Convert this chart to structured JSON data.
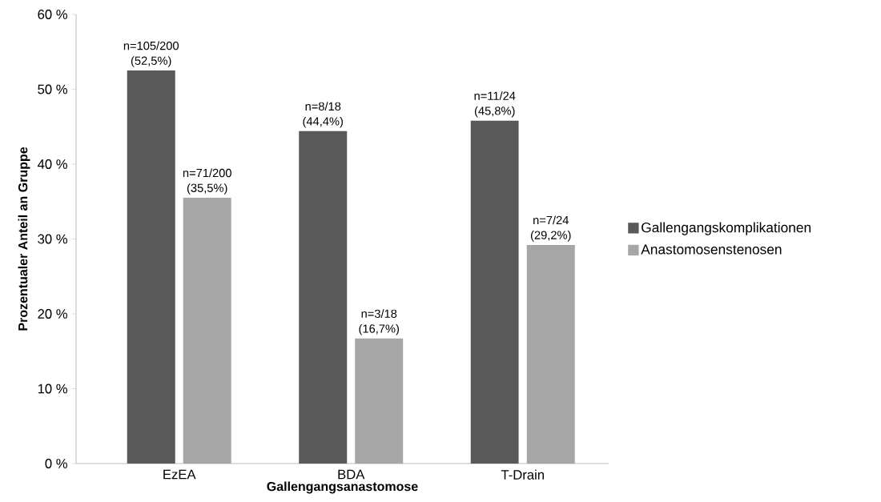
{
  "chart_data": {
    "type": "bar",
    "xlabel": "Gallengangsanastomose",
    "ylabel": "Prozentualer Anteil an Gruppe",
    "categories": [
      "EzEA",
      "BDA",
      "T-Drain"
    ],
    "series": [
      {
        "name": "Gallengangskomplikationen",
        "color": "#595959",
        "values": [
          52.5,
          44.4,
          45.8
        ],
        "value_labels": [
          "n=105/200 (52,5%)",
          "n=8/18 (44,4%)",
          "n=11/24 (45,8%)"
        ]
      },
      {
        "name": "Anastomosenstenosen",
        "color": "#a6a6a6",
        "values": [
          35.5,
          16.7,
          29.2
        ],
        "value_labels": [
          "n=71/200 (35,5%)",
          "n=3/18 (16,7%)",
          "n=7/24 (29,2%)"
        ]
      }
    ],
    "ylim": [
      0,
      60
    ],
    "yticks": [
      {
        "value": 0,
        "label": "0 %"
      },
      {
        "value": 10,
        "label": "10 %"
      },
      {
        "value": 20,
        "label": "20 %"
      },
      {
        "value": 30,
        "label": "30 %"
      },
      {
        "value": 40,
        "label": "40 %"
      },
      {
        "value": 50,
        "label": "50 %"
      },
      {
        "value": 60,
        "label": "60 %"
      }
    ],
    "grid": false,
    "legend": "right"
  }
}
